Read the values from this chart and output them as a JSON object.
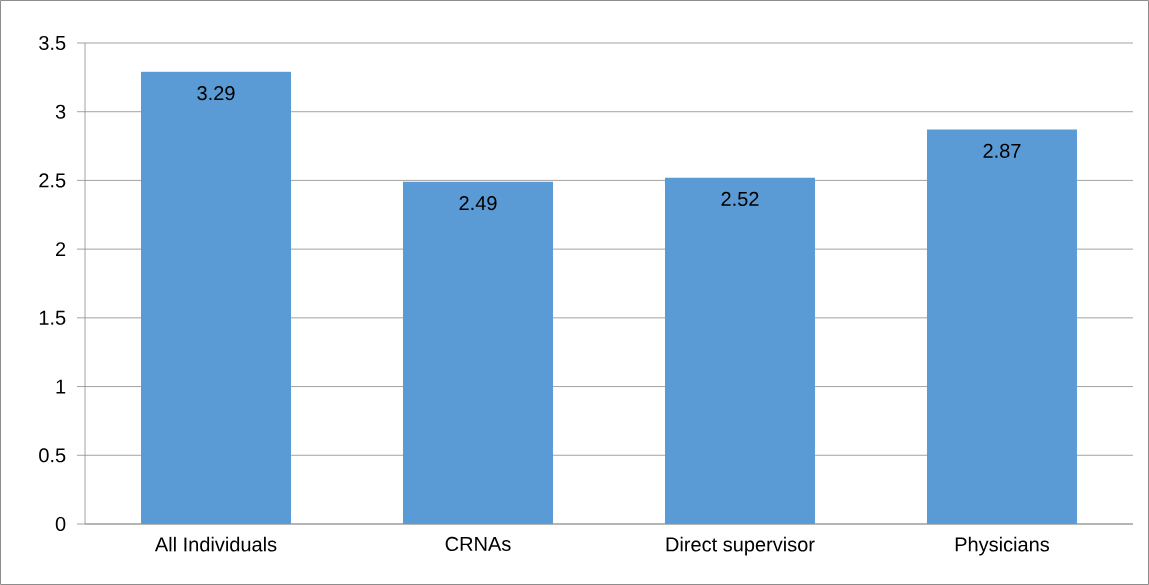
{
  "chart_data": {
    "type": "bar",
    "categories": [
      "All Individuals",
      "CRNAs",
      "Direct supervisor",
      "Physicians"
    ],
    "values": [
      3.29,
      2.49,
      2.52,
      2.87
    ],
    "color": "#5b9bd5",
    "ylim": [
      0,
      3.5
    ],
    "yticks": [
      0,
      0.5,
      1,
      1.5,
      2,
      2.5,
      3,
      3.5
    ],
    "grid": "y",
    "data_labels": true
  }
}
